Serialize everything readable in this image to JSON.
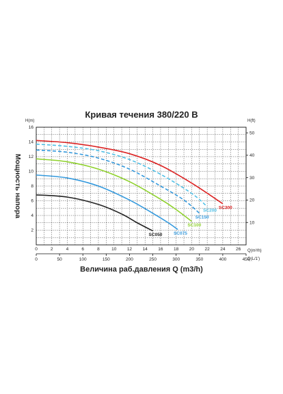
{
  "chart_data": {
    "type": "line",
    "title": "Кривая течения 380/220 В",
    "xlabel": "Величина раб.давления Q (m3/h)",
    "ylabel": "Мощность напора",
    "left_axis": {
      "unit": "H(m)",
      "ticks": [
        "2",
        "4",
        "6",
        "8",
        "10",
        "12",
        "14",
        "16"
      ],
      "range": [
        0,
        16
      ]
    },
    "right_axis": {
      "unit": "H(ft)",
      "ticks": [
        "10",
        "20",
        "30",
        "40",
        "50"
      ],
      "range": [
        0,
        52.5
      ]
    },
    "bottom_axis": {
      "unit": "Q(m³/h)",
      "ticks": [
        "0",
        "2",
        "4",
        "6",
        "8",
        "10",
        "12",
        "14",
        "16",
        "18",
        "20",
        "22",
        "24",
        "26"
      ],
      "range": [
        0,
        27
      ]
    },
    "bottom_axis2": {
      "unit": "Q(L/1′)",
      "ticks": [
        "0",
        "50",
        "100",
        "150",
        "200",
        "250",
        "300",
        "350",
        "400",
        "450"
      ]
    },
    "grid": true,
    "series": [
      {
        "name": "SC050",
        "color": "#222222",
        "dashed": false,
        "x": [
          0,
          4,
          8,
          11,
          13,
          15
        ],
        "y": [
          6.8,
          6.5,
          5.5,
          4.2,
          3.0,
          1.9
        ]
      },
      {
        "name": "SC075",
        "color": "#3399dd",
        "dashed": false,
        "x": [
          0,
          4,
          8,
          12,
          15,
          17,
          18.2
        ],
        "y": [
          9.5,
          9.1,
          8.0,
          6.1,
          4.3,
          3.0,
          2.1
        ]
      },
      {
        "name": "SC100",
        "color": "#8ed12b",
        "dashed": false,
        "x": [
          0,
          4,
          8,
          12,
          16,
          18,
          20
        ],
        "y": [
          11.7,
          11.3,
          10.3,
          8.6,
          6.2,
          4.8,
          3.2
        ]
      },
      {
        "name": "SC150",
        "color": "#3399dd",
        "dashed": true,
        "x": [
          0,
          4,
          8,
          12,
          16,
          19,
          21
        ],
        "y": [
          12.9,
          12.6,
          11.8,
          10.3,
          8.0,
          6.1,
          4.3
        ]
      },
      {
        "name": "SC200",
        "color": "#4fbfe6",
        "dashed": true,
        "x": [
          0,
          4,
          8,
          12,
          16,
          20,
          22
        ],
        "y": [
          13.7,
          13.4,
          12.8,
          11.6,
          9.6,
          7.0,
          5.2
        ]
      },
      {
        "name": "SC300",
        "color": "#dd2222",
        "dashed": false,
        "x": [
          0,
          4,
          8,
          12,
          16,
          20,
          24
        ],
        "y": [
          14.2,
          13.9,
          13.3,
          12.4,
          10.8,
          8.4,
          5.6
        ]
      }
    ]
  }
}
